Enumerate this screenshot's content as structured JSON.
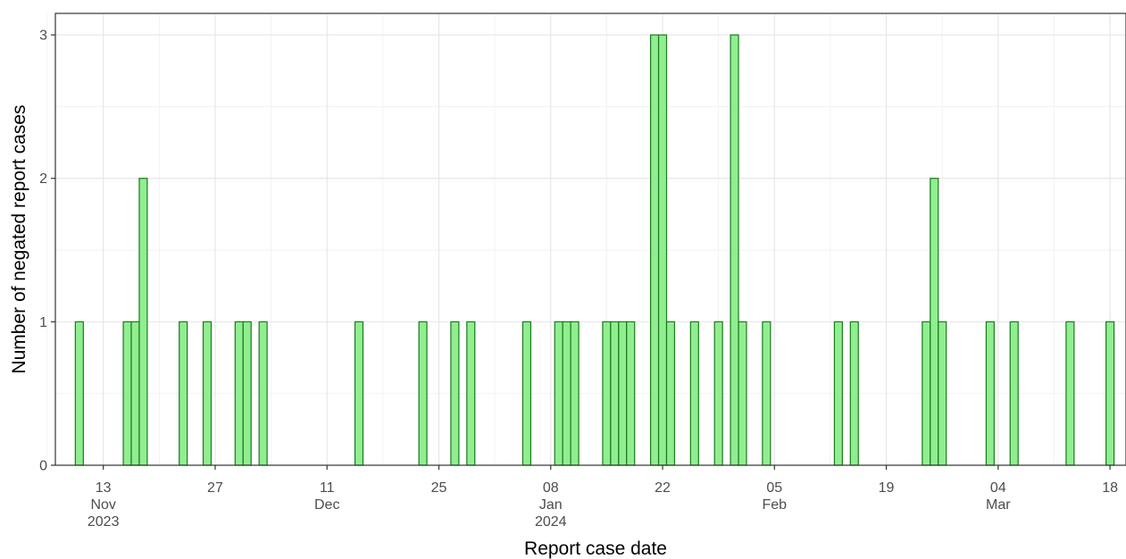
{
  "chart_data": {
    "type": "bar",
    "title": "",
    "xlabel": "Report case date",
    "ylabel": "Number of negated report cases",
    "ylim": [
      0,
      3.15
    ],
    "xlim": [
      "2023-11-07",
      "2024-03-20"
    ],
    "y_ticks": [
      0,
      1,
      2,
      3
    ],
    "grid": true,
    "bar_color": "#90ee90",
    "bar_outline": "#1a7a1a",
    "x_ticks": [
      {
        "date": "2023-11-13",
        "label": [
          "13",
          "Nov",
          "2023"
        ]
      },
      {
        "date": "2023-11-27",
        "label": [
          "27"
        ]
      },
      {
        "date": "2023-12-11",
        "label": [
          "11",
          "Dec"
        ]
      },
      {
        "date": "2023-12-25",
        "label": [
          "25"
        ]
      },
      {
        "date": "2024-01-08",
        "label": [
          "08",
          "Jan",
          "2024"
        ]
      },
      {
        "date": "2024-01-22",
        "label": [
          "22"
        ]
      },
      {
        "date": "2024-02-05",
        "label": [
          "05",
          "Feb"
        ]
      },
      {
        "date": "2024-02-19",
        "label": [
          "19"
        ]
      },
      {
        "date": "2024-03-04",
        "label": [
          "04",
          "Mar"
        ]
      },
      {
        "date": "2024-03-18",
        "label": [
          "18"
        ]
      }
    ],
    "x": [
      "2023-11-10",
      "2023-11-16",
      "2023-11-17",
      "2023-11-18",
      "2023-11-23",
      "2023-11-26",
      "2023-11-30",
      "2023-12-01",
      "2023-12-03",
      "2023-12-15",
      "2023-12-23",
      "2023-12-27",
      "2023-12-29",
      "2024-01-05",
      "2024-01-09",
      "2024-01-10",
      "2024-01-11",
      "2024-01-15",
      "2024-01-16",
      "2024-01-17",
      "2024-01-18",
      "2024-01-21",
      "2024-01-22",
      "2024-01-23",
      "2024-01-26",
      "2024-01-29",
      "2024-01-31",
      "2024-02-01",
      "2024-02-04",
      "2024-02-13",
      "2024-02-15",
      "2024-02-24",
      "2024-02-25",
      "2024-02-26",
      "2024-03-03",
      "2024-03-06",
      "2024-03-13",
      "2024-03-18"
    ],
    "values": [
      1,
      1,
      1,
      2,
      1,
      1,
      1,
      1,
      1,
      1,
      1,
      1,
      1,
      1,
      1,
      1,
      1,
      1,
      1,
      1,
      1,
      3,
      3,
      1,
      1,
      1,
      3,
      1,
      1,
      1,
      1,
      1,
      2,
      1,
      1,
      1,
      1,
      1
    ]
  }
}
